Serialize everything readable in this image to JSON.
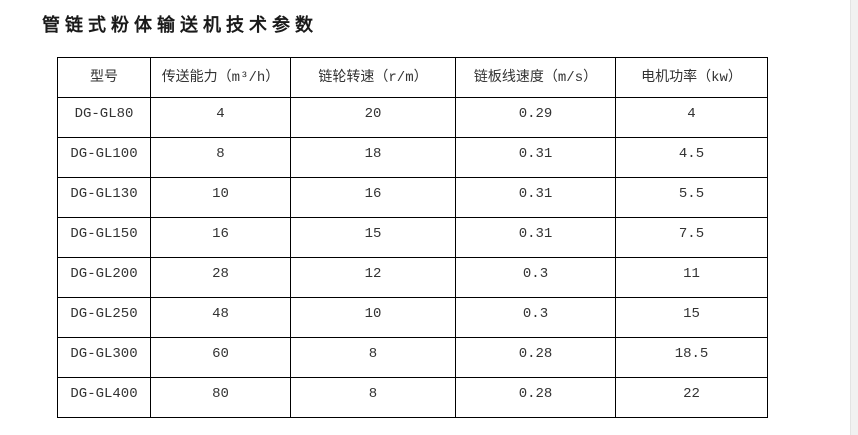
{
  "title": "管链式粉体输送机技术参数",
  "table": {
    "columns": [
      "型号",
      "传送能力（m³/h）",
      "链轮转速（r/m）",
      "链板线速度（m/s）",
      "电机功率（kw）"
    ],
    "rows": [
      [
        "DG-GL80",
        "4",
        "20",
        "0.29",
        "4"
      ],
      [
        "DG-GL100",
        "8",
        "18",
        "0.31",
        "4.5"
      ],
      [
        "DG-GL130",
        "10",
        "16",
        "0.31",
        "5.5"
      ],
      [
        "DG-GL150",
        "16",
        "15",
        "0.31",
        "7.5"
      ],
      [
        "DG-GL200",
        "28",
        "12",
        "0.3",
        "11"
      ],
      [
        "DG-GL250",
        "48",
        "10",
        "0.3",
        "15"
      ],
      [
        "DG-GL300",
        "60",
        "8",
        "0.28",
        "18.5"
      ],
      [
        "DG-GL400",
        "80",
        "8",
        "0.28",
        "22"
      ]
    ]
  },
  "colors": {
    "table_border": "#000000",
    "cell_text": "#333333",
    "title_text": "#1a1a1a",
    "scrollbar_track": "#f1f1f1",
    "page_background": "#ffffff"
  }
}
